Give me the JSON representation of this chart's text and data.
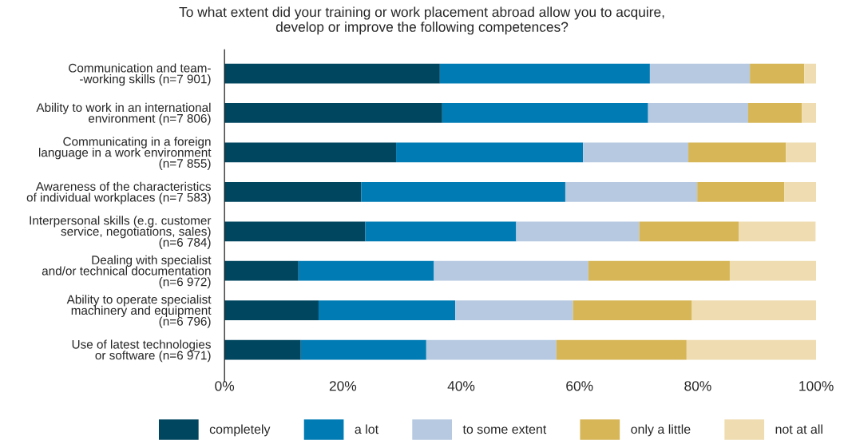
{
  "chart_data": {
    "type": "bar",
    "orientation": "horizontal",
    "stacked": true,
    "title": "To what extent did your training or work placement abroad allow you to acquire,\ndevelop or improve the following competences?",
    "categories": [
      "Communication and team-\n-working skills (n=7 901)",
      "Ability to work in an international\nenvironment (n=7 806)",
      "Communicating in a foreign\nlanguage in a work environment\n(n=7 855)",
      "Awareness of the characteristics\nof individual workplaces (n=7 583)",
      "Interpersonal skills (e.g. customer\nservice, negotiations, sales)\n(n=6 784)",
      "Dealing with specialist\nand/or technical documentation\n(n=6 972)",
      "Ability to operate specialist\nmachinery and equipment\n(n=6 796)",
      "Use of latest technologies\nor software (n=6 971)"
    ],
    "series": [
      {
        "name": "completely",
        "color": "#00465f",
        "values": [
          36.4,
          36.8,
          29.0,
          23.1,
          23.8,
          12.5,
          15.9,
          12.9
        ]
      },
      {
        "name": "a lot",
        "color": "#007bb4",
        "values": [
          35.5,
          34.8,
          31.6,
          34.5,
          25.5,
          22.9,
          23.1,
          21.2
        ]
      },
      {
        "name": "to some extent",
        "color": "#b6c9e1",
        "values": [
          16.9,
          16.9,
          17.8,
          22.3,
          20.8,
          26.1,
          19.9,
          22.0
        ]
      },
      {
        "name": "only a little",
        "color": "#d6b656",
        "values": [
          9.2,
          9.1,
          16.5,
          14.7,
          16.8,
          23.9,
          20.1,
          22.0
        ]
      },
      {
        "name": "not at all",
        "color": "#efdcb0",
        "values": [
          2.0,
          2.4,
          5.1,
          5.4,
          13.0,
          14.6,
          21.0,
          21.9
        ]
      }
    ],
    "xlim": [
      0,
      100
    ],
    "xticks": [
      {
        "value": 0,
        "label": "0%"
      },
      {
        "value": 20,
        "label": "20%"
      },
      {
        "value": 40,
        "label": "40%"
      },
      {
        "value": 60,
        "label": "60%"
      },
      {
        "value": 80,
        "label": "80%"
      },
      {
        "value": 100,
        "label": "100%"
      }
    ],
    "grid": false,
    "legend": "bottom"
  }
}
